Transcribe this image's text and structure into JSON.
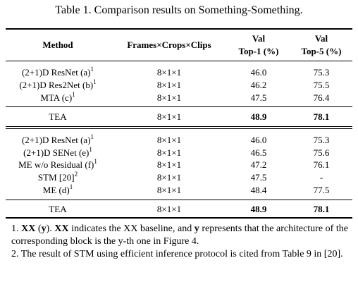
{
  "caption": "Table 1.  Comparison results on Something-Something.",
  "header": {
    "method": "Method",
    "frames": "Frames×Crops×Clips",
    "top1_line1": "Val",
    "top1_line2": "Top-1 (%)",
    "top5_line1": "Val",
    "top5_line2": "Top-5 (%)"
  },
  "group1": [
    {
      "method": "(2+1)D ResNet (a)",
      "sup": "1",
      "frames": "8×1×1",
      "top1": "46.0",
      "top5": "75.3"
    },
    {
      "method": "(2+1)D Res2Net (b)",
      "sup": "1",
      "frames": "8×1×1",
      "top1": "46.2",
      "top5": "75.5"
    },
    {
      "method": "MTA (c)",
      "sup": "1",
      "frames": "8×1×1",
      "top1": "47.5",
      "top5": "76.4"
    }
  ],
  "tea1": {
    "method": "TEA",
    "frames": "8×1×1",
    "top1": "48.9",
    "top5": "78.1"
  },
  "group2": [
    {
      "method": "(2+1)D ResNet (a)",
      "sup": "1",
      "frames": "8×1×1",
      "top1": "46.0",
      "top5": "75.3"
    },
    {
      "method": "(2+1)D SENet (e)",
      "sup": "1",
      "frames": "8×1×1",
      "top1": "46.5",
      "top5": "75.6"
    },
    {
      "method": "ME w/o Residual (f)",
      "sup": "1",
      "frames": "8×1×1",
      "top1": "47.2",
      "top5": "76.1"
    },
    {
      "method": "STM [20]",
      "sup": "2",
      "frames": "8×1×1",
      "top1": "47.5",
      "top5": "-"
    },
    {
      "method": "ME (d)",
      "sup": "1",
      "frames": "8×1×1",
      "top1": "48.4",
      "top5": "77.5"
    }
  ],
  "tea2": {
    "method": "TEA",
    "frames": "8×1×1",
    "top1": "48.9",
    "top5": "78.1"
  },
  "notes": {
    "n1_prefix": "1. ",
    "n1_b1": "XX",
    "n1_t1": " (",
    "n1_b2": "y",
    "n1_t2": "). ",
    "n1_b3": "XX",
    "n1_t3": " indicates the XX baseline, and ",
    "n1_b4": "y",
    "n1_t4": " represents that the architecture of the corresponding block is the y-th one in Figure 4.",
    "n2": "2. The result of STM using efficient inference protocol is cited from Table 9 in [20]."
  }
}
